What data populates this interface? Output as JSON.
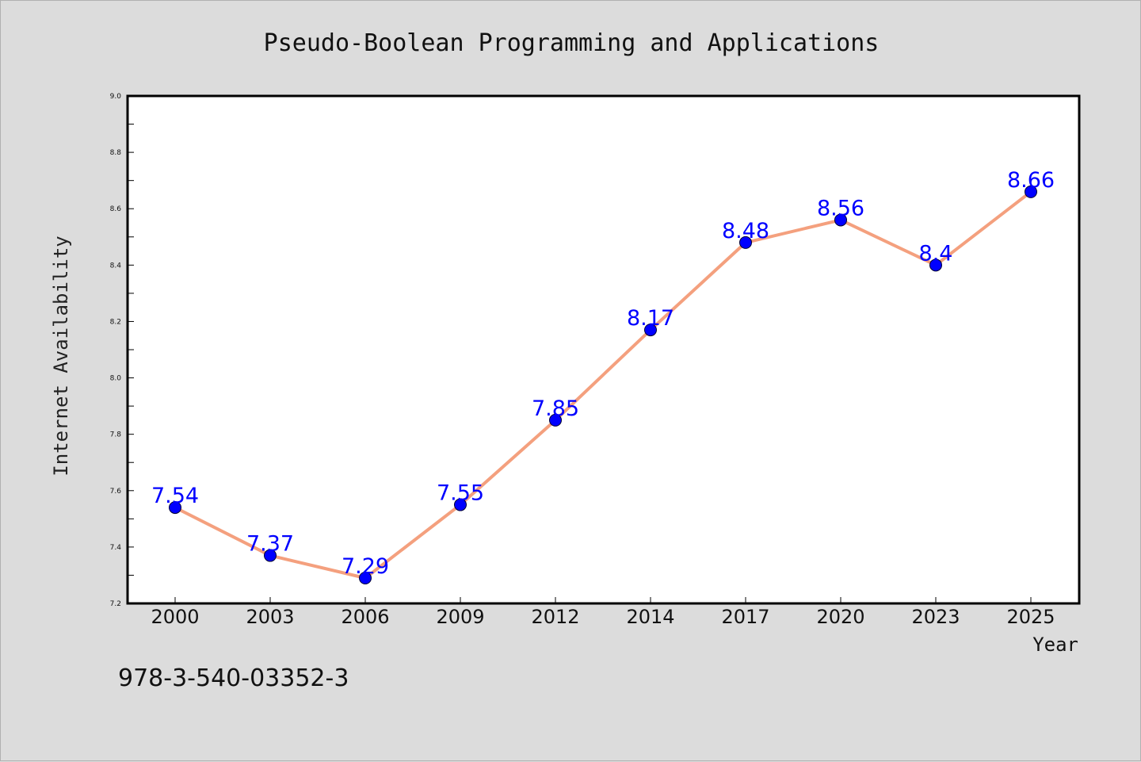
{
  "chart_data": {
    "type": "line",
    "title": "Pseudo-Boolean Programming and Applications",
    "xlabel": "Year",
    "ylabel": "Internet Availability",
    "categories": [
      "2000",
      "2003",
      "2006",
      "2009",
      "2012",
      "2014",
      "2017",
      "2020",
      "2023",
      "2025"
    ],
    "values": [
      7.54,
      7.37,
      7.29,
      7.55,
      7.85,
      8.17,
      8.48,
      8.56,
      8.4,
      8.66
    ],
    "value_labels": [
      "7.54",
      "7.37",
      "7.29",
      "7.55",
      "7.85",
      "8.17",
      "8.48",
      "8.56",
      "8.4",
      "8.66"
    ],
    "ylim": [
      7.2,
      9.0
    ],
    "yticks": [
      "7.2",
      "7.4",
      "7.6",
      "7.8",
      "8.0",
      "8.2",
      "8.4",
      "8.6",
      "8.8",
      "9.0"
    ],
    "grid": false,
    "line_color": "#f4a07e",
    "marker_color": "#0000ff",
    "label_color": "#0000ff",
    "plot_background": "#ffffff",
    "page_background": "#dcdcdc"
  },
  "footer": {
    "isbn": "978-3-540-03352-3"
  }
}
